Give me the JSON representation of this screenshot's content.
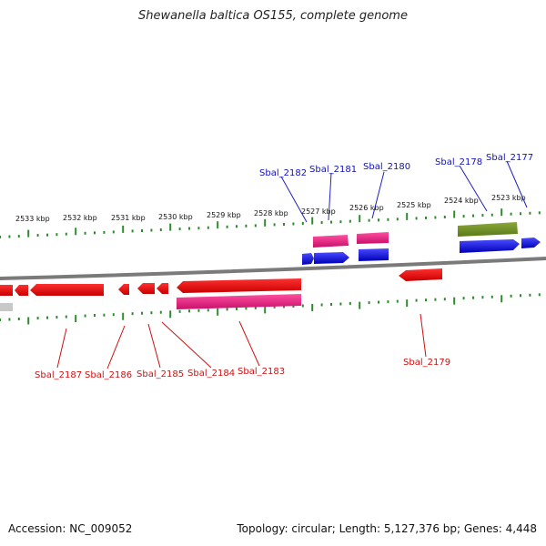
{
  "title": "Shewanella baltica OS155, complete genome",
  "footer": {
    "accession": "Accession: NC_009052",
    "summary": "Topology: circular; Length: 5,127,376 bp; Genes: 4,448"
  },
  "colors": {
    "forward_cds": "#1010e0",
    "reverse_cds": "#e01010",
    "forward_rna": "#e0207a",
    "reverse_rna": "#e0207a",
    "other": "#6b8e23",
    "backbone": "#808080",
    "ticks": "#2e8b2e",
    "label_forward": "#1010c0",
    "label_reverse": "#d01010"
  },
  "scale_labels": [
    "2533 kbp",
    "2532 kbp",
    "2531 kbp",
    "2530 kbp",
    "2529 kbp",
    "2528 kbp",
    "2527 kbp",
    "2526 kbp",
    "2525 kbp",
    "2524 kbp",
    "2523 kbp"
  ],
  "forward_gene_labels": [
    "Sbal_2182",
    "Sbal_2181",
    "Sbal_2180",
    "Sbal_2178",
    "Sbal_2177"
  ],
  "reverse_gene_labels": [
    "Sbal_2187",
    "Sbal_2186",
    "Sbal_2185",
    "Sbal_2184",
    "Sbal_2183",
    "Sbal_2179"
  ]
}
